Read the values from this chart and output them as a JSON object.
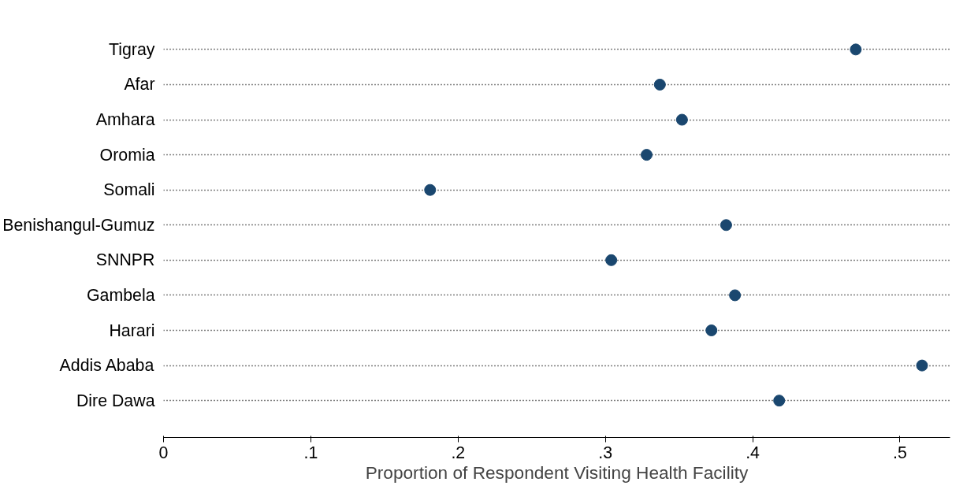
{
  "chart_data": {
    "type": "scatter",
    "orientation": "horizontal",
    "xlabel": "Proportion of Respondent Visiting Health Facility",
    "categories": [
      "Tigray",
      "Afar",
      "Amhara",
      "Oromia",
      "Somali",
      "Benishangul-Gumuz",
      "SNNPR",
      "Gambela",
      "Harari",
      "Addis Ababa",
      "Dire Dawa"
    ],
    "values": [
      0.47,
      0.337,
      0.352,
      0.328,
      0.181,
      0.382,
      0.304,
      0.388,
      0.372,
      0.515,
      0.418
    ],
    "color": "#1a476f",
    "marker": "circle",
    "grid": "y",
    "xlim": [
      0,
      0.534
    ],
    "xticks": [
      {
        "value": 0,
        "label": "0"
      },
      {
        "value": 0.1,
        "label": ".1"
      },
      {
        "value": 0.2,
        "label": ".2"
      },
      {
        "value": 0.3,
        "label": ".3"
      },
      {
        "value": 0.4,
        "label": ".4"
      },
      {
        "value": 0.5,
        "label": ".5"
      }
    ]
  }
}
